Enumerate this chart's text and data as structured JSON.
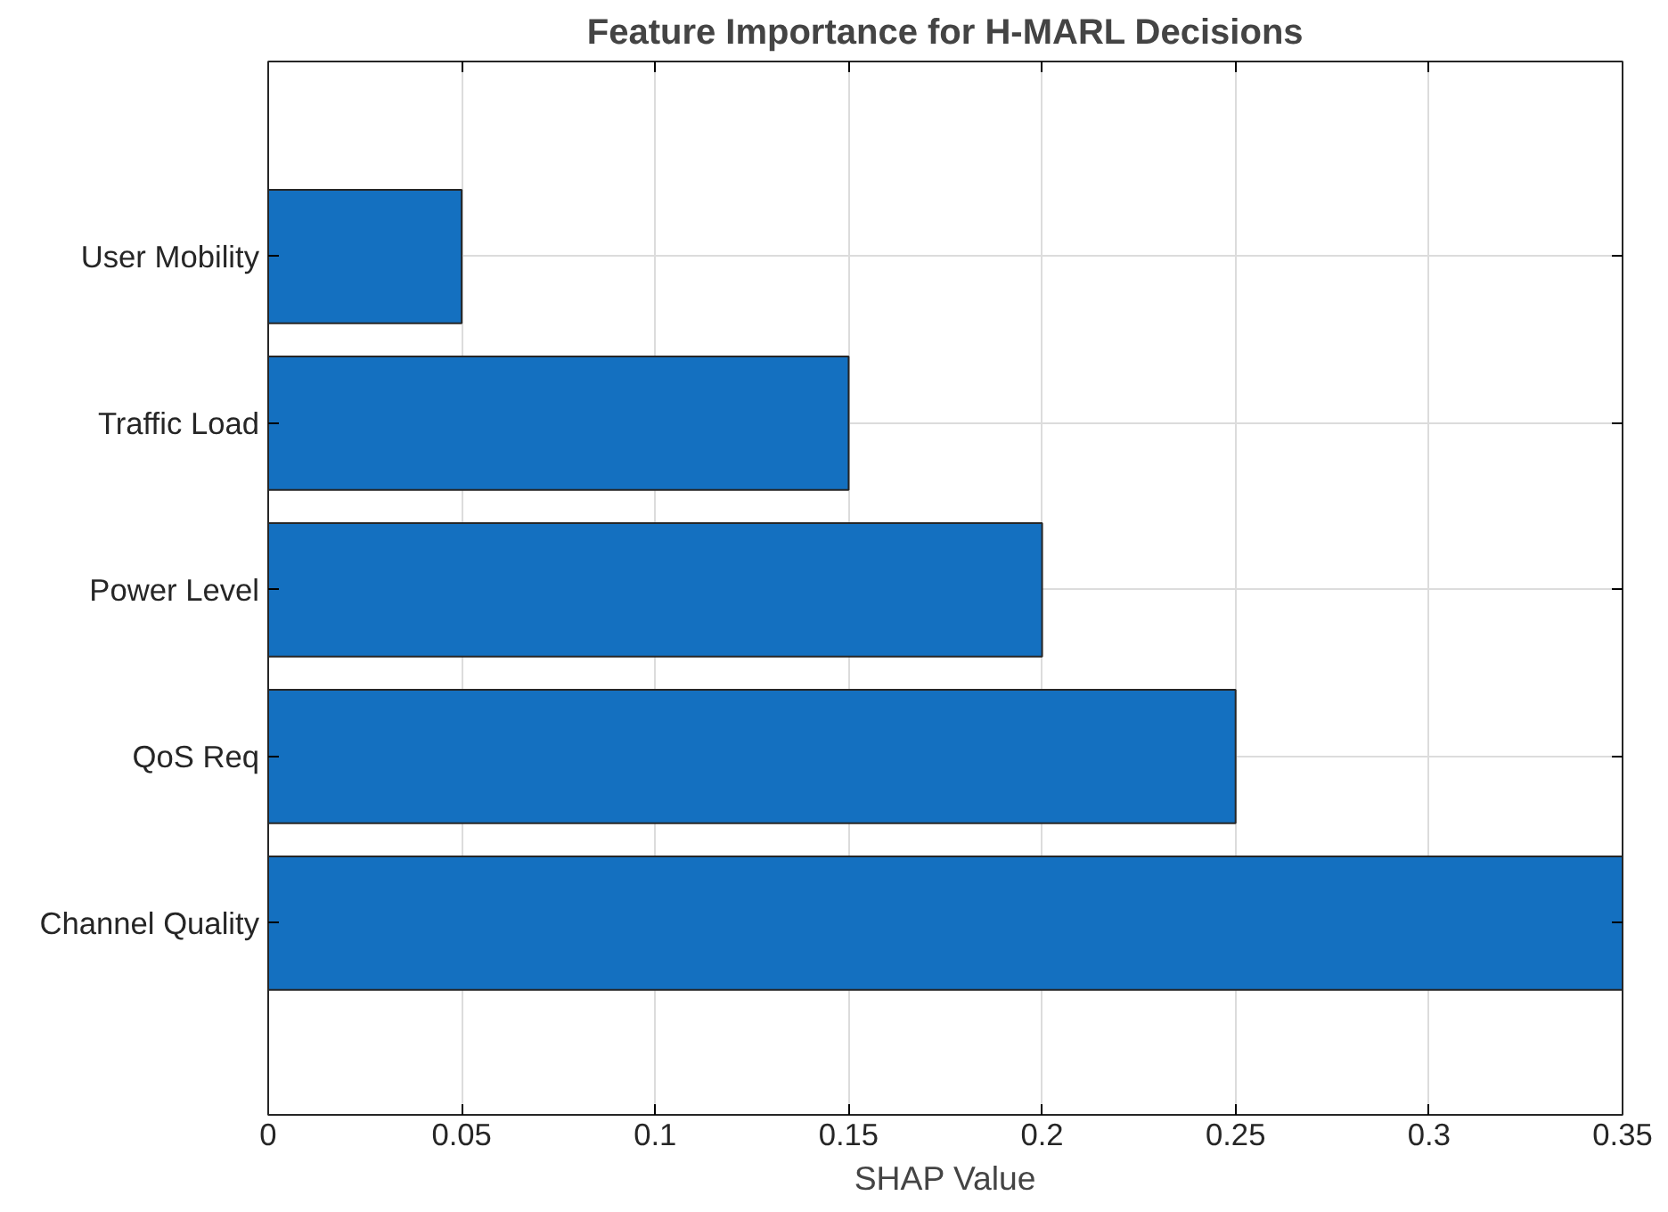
{
  "chart_data": {
    "type": "bar",
    "orientation": "horizontal",
    "title": "Feature Importance for H-MARL Decisions",
    "xlabel": "SHAP Value",
    "categories": [
      "User Mobility",
      "Traffic Load",
      "Power Level",
      "QoS Req",
      "Channel Quality"
    ],
    "values": [
      0.05,
      0.15,
      0.2,
      0.25,
      0.35
    ],
    "color": "#1470c0",
    "xlim": [
      0,
      0.35
    ],
    "xticks": [
      0,
      0.05,
      0.1,
      0.15,
      0.2,
      0.25,
      0.3,
      0.35
    ],
    "grid": true
  }
}
